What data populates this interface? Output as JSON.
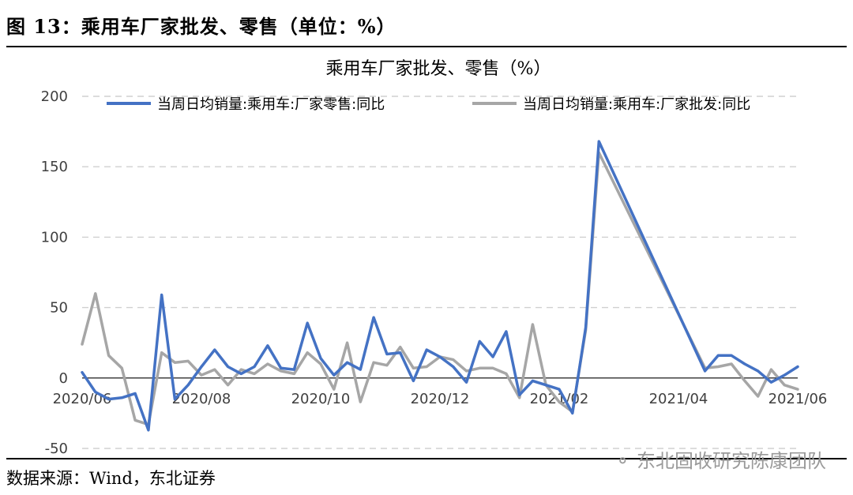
{
  "figure": {
    "title": "图 13：乘用车厂家批发、零售（单位：%）",
    "source": "数据来源：Wind，东北证券",
    "watermark": "东北固收研究陈康团队"
  },
  "chart_data": {
    "type": "line",
    "title": "乘用车厂家批发、零售（%）",
    "xlabel": "",
    "ylabel": "",
    "ylim": [
      -50,
      200
    ],
    "yticks": [
      -50,
      0,
      50,
      100,
      150,
      200
    ],
    "grid": true,
    "legend": "top",
    "x_ticks": [
      "2020/06",
      "2020/08",
      "2020/10",
      "2020/12",
      "2021/02",
      "2021/04",
      "2021/06"
    ],
    "x_tick_index": [
      0,
      9,
      18,
      27,
      36,
      45,
      54
    ],
    "x_count": 55,
    "series": [
      {
        "name": "当周日均销量:乘用车:厂家零售:同比",
        "color": "#4472C4",
        "points": [
          [
            0,
            4
          ],
          [
            1,
            -10
          ],
          [
            2,
            -15
          ],
          [
            3,
            -14
          ],
          [
            4,
            -11
          ],
          [
            5,
            -37
          ],
          [
            6,
            59
          ],
          [
            7,
            -15
          ],
          [
            8,
            -5
          ],
          [
            9,
            8
          ],
          [
            10,
            20
          ],
          [
            11,
            8
          ],
          [
            12,
            3
          ],
          [
            13,
            8
          ],
          [
            14,
            23
          ],
          [
            15,
            7
          ],
          [
            16,
            6
          ],
          [
            17,
            39
          ],
          [
            18,
            14
          ],
          [
            19,
            2
          ],
          [
            20,
            11
          ],
          [
            21,
            6
          ],
          [
            22,
            43
          ],
          [
            23,
            17
          ],
          [
            24,
            18
          ],
          [
            25,
            -2
          ],
          [
            26,
            20
          ],
          [
            27,
            15
          ],
          [
            28,
            8
          ],
          [
            29,
            -3
          ],
          [
            30,
            26
          ],
          [
            31,
            15
          ],
          [
            32,
            33
          ],
          [
            33,
            -12
          ],
          [
            34,
            -2
          ],
          [
            35,
            -5
          ],
          [
            36,
            -8
          ],
          [
            37,
            -25
          ],
          [
            38,
            36
          ],
          [
            39,
            168
          ],
          [
            47,
            5
          ],
          [
            48,
            16
          ],
          [
            49,
            16
          ],
          [
            50,
            10
          ],
          [
            51,
            5
          ],
          [
            52,
            -3
          ],
          [
            53,
            2
          ],
          [
            54,
            8
          ]
        ]
      },
      {
        "name": "当周日均销量:乘用车:厂家批发:同比",
        "color": "#A6A6A6",
        "points": [
          [
            0,
            24
          ],
          [
            1,
            60
          ],
          [
            2,
            16
          ],
          [
            3,
            7
          ],
          [
            4,
            -30
          ],
          [
            5,
            -33
          ],
          [
            6,
            18
          ],
          [
            7,
            11
          ],
          [
            8,
            12
          ],
          [
            9,
            2
          ],
          [
            10,
            6
          ],
          [
            11,
            -5
          ],
          [
            12,
            6
          ],
          [
            13,
            3
          ],
          [
            14,
            10
          ],
          [
            15,
            5
          ],
          [
            16,
            3
          ],
          [
            17,
            18
          ],
          [
            18,
            10
          ],
          [
            19,
            -8
          ],
          [
            20,
            25
          ],
          [
            21,
            -17
          ],
          [
            22,
            11
          ],
          [
            23,
            9
          ],
          [
            24,
            22
          ],
          [
            25,
            7
          ],
          [
            26,
            8
          ],
          [
            27,
            15
          ],
          [
            28,
            13
          ],
          [
            29,
            5
          ],
          [
            30,
            7
          ],
          [
            31,
            7
          ],
          [
            32,
            3
          ],
          [
            33,
            -14
          ],
          [
            34,
            38
          ],
          [
            35,
            -5
          ],
          [
            36,
            -17
          ],
          [
            37,
            -24
          ],
          [
            38,
            34
          ],
          [
            39,
            160
          ],
          [
            47,
            7
          ],
          [
            48,
            8
          ],
          [
            49,
            10
          ],
          [
            50,
            -2
          ],
          [
            51,
            -13
          ],
          [
            52,
            6
          ],
          [
            53,
            -5
          ],
          [
            54,
            -8
          ]
        ]
      }
    ]
  }
}
